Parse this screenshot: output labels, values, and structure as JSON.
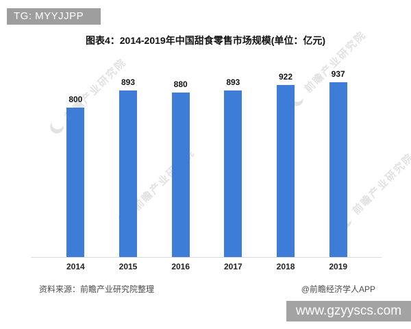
{
  "badges": {
    "tg": "TG: MYYJJPP",
    "url": "www.gzyyscs.com"
  },
  "chart_data": {
    "type": "bar",
    "title": "图表4：2014-2019年中国甜食零售市场规模(单位：亿元)",
    "categories": [
      "2014",
      "2015",
      "2016",
      "2017",
      "2018",
      "2019"
    ],
    "values": [
      800,
      893,
      880,
      893,
      922,
      937
    ],
    "unit": "亿元",
    "ylim": [
      0,
      960
    ],
    "grid": false,
    "legend": false,
    "value_labels": true,
    "bar_color": "#3d7dd8"
  },
  "footer": {
    "source": "资料来源：前瞻产业研究院整理",
    "credit": "@前瞻经济学人APP"
  },
  "watermark": {
    "text": "前瞻产业研究院",
    "logo": "qianzhan-crescent-logo"
  },
  "colors": {
    "bar": "#3d7dd8",
    "badge_bg": "#9e9e9e",
    "badge_text": "#ffffff",
    "axis_line": "#d9d9d9",
    "watermark": "#e2e2e2",
    "title_text": "#111111",
    "footer_text": "#4a4a4a"
  }
}
